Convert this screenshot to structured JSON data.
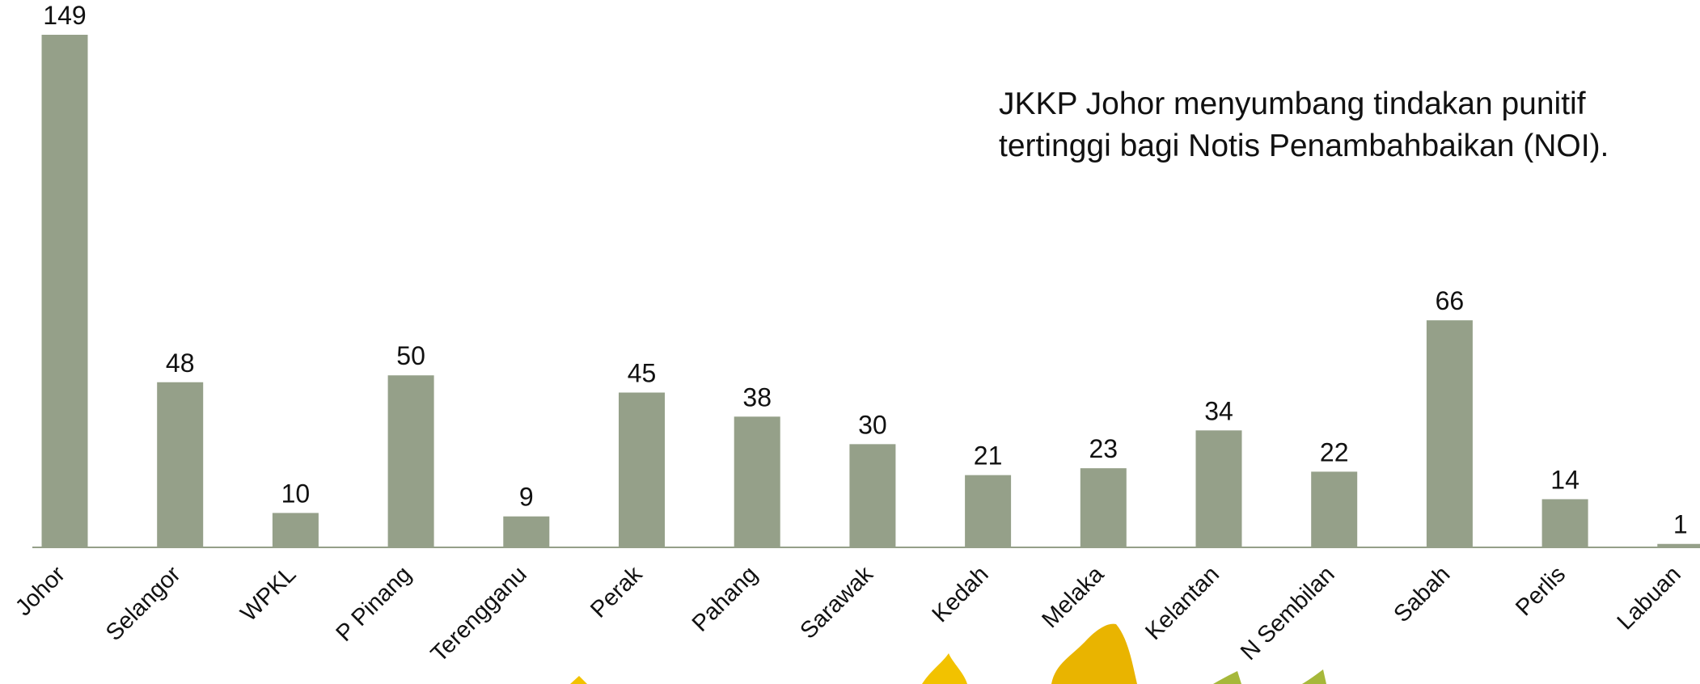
{
  "chart_data": {
    "type": "bar",
    "categories": [
      "Johor",
      "Selangor",
      "WPKL",
      "P Pinang",
      "Terengganu",
      "Perak",
      "Pahang",
      "Sarawak",
      "Kedah",
      "Melaka",
      "Kelantan",
      "N Sembilan",
      "Sabah",
      "Perlis",
      "Labuan"
    ],
    "values": [
      149,
      48,
      10,
      50,
      9,
      45,
      38,
      30,
      21,
      23,
      34,
      22,
      66,
      14,
      1
    ],
    "data_labels": [
      "149",
      "48",
      "10",
      "50",
      "9",
      "45",
      "38",
      "30",
      "21",
      "23",
      "34",
      "22",
      "66",
      "14",
      "1"
    ],
    "title": "",
    "xlabel": "",
    "ylabel": "",
    "ylim": [
      0,
      149
    ],
    "grid": false,
    "bar_color": "#95a089",
    "annotations": [
      "JKKP Johor menyumbang tindakan punitif",
      "tertinggi bagi Notis Penambahbaikan (NOI)."
    ]
  },
  "decoration": {
    "leaf_colors": [
      "#f2c200",
      "#e9b400",
      "#a6b83a"
    ]
  }
}
